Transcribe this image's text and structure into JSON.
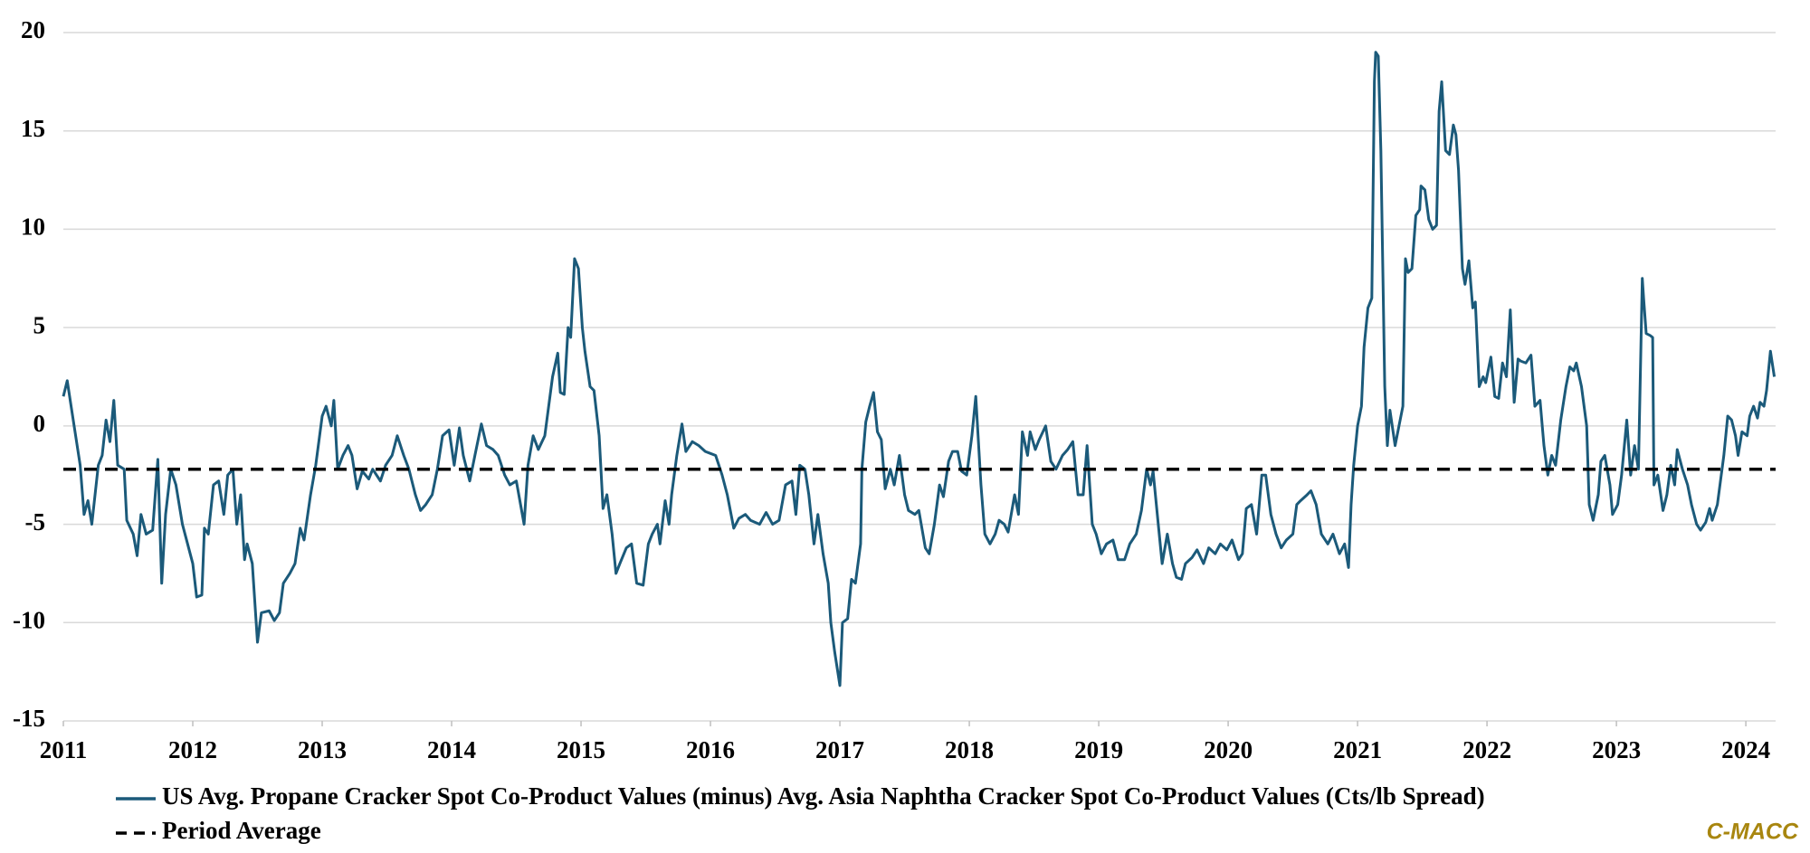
{
  "chart_data": {
    "type": "line",
    "xlim": [
      2011,
      2024.23
    ],
    "xticks": [
      2011,
      2012,
      2013,
      2014,
      2015,
      2016,
      2017,
      2018,
      2019,
      2020,
      2021,
      2022,
      2023,
      2024
    ],
    "ylim": [
      -15,
      20
    ],
    "yticks": [
      -15,
      -10,
      -5,
      0,
      5,
      10,
      15,
      20
    ],
    "grid": true,
    "watermark": "C-MACC",
    "series": [
      {
        "name": "US Avg. Propane Cracker Spot Co-Product Values (minus) Avg. Asia Naphtha Cracker Spot Co-Product Values (Cts/lb Spread)",
        "color": "#1b5a7a",
        "dashed": false,
        "x": [
          2011.0,
          2011.03,
          2011.06,
          2011.13,
          2011.16,
          2011.19,
          2011.22,
          2011.27,
          2011.3,
          2011.33,
          2011.36,
          2011.39,
          2011.42,
          2011.47,
          2011.49,
          2011.54,
          2011.57,
          2011.6,
          2011.64,
          2011.69,
          2011.73,
          2011.76,
          2011.79,
          2011.83,
          2011.87,
          2011.92,
          2011.96,
          2012.0,
          2012.03,
          2012.07,
          2012.09,
          2012.12,
          2012.16,
          2012.2,
          2012.24,
          2012.27,
          2012.31,
          2012.34,
          2012.37,
          2012.4,
          2012.42,
          2012.46,
          2012.5,
          2012.53,
          2012.59,
          2012.63,
          2012.67,
          2012.7,
          2012.75,
          2012.79,
          2012.83,
          2012.86,
          2012.91,
          2012.95,
          2013.0,
          2013.03,
          2013.07,
          2013.09,
          2013.12,
          2013.16,
          2013.2,
          2013.23,
          2013.27,
          2013.31,
          2013.36,
          2013.39,
          2013.45,
          2013.49,
          2013.54,
          2013.58,
          2013.63,
          2013.67,
          2013.72,
          2013.76,
          2013.8,
          2013.85,
          2013.89,
          2013.93,
          2013.98,
          2014.02,
          2014.06,
          2014.09,
          2014.14,
          2014.18,
          2014.23,
          2014.27,
          2014.32,
          2014.36,
          2014.41,
          2014.45,
          2014.5,
          2014.56,
          2014.59,
          2014.63,
          2014.67,
          2014.72,
          2014.75,
          2014.78,
          2014.82,
          2014.84,
          2014.87,
          2014.9,
          2014.92,
          2014.95,
          2014.98,
          2015.01,
          2015.03,
          2015.07,
          2015.1,
          2015.14,
          2015.17,
          2015.2,
          2015.24,
          2015.27,
          2015.3,
          2015.35,
          2015.39,
          2015.43,
          2015.48,
          2015.52,
          2015.55,
          2015.59,
          2015.61,
          2015.65,
          2015.68,
          2015.7,
          2015.74,
          2015.78,
          2015.81,
          2015.86,
          2015.91,
          2015.96,
          2016.0,
          2016.04,
          2016.09,
          2016.13,
          2016.18,
          2016.22,
          2016.27,
          2016.31,
          2016.38,
          2016.43,
          2016.48,
          2016.53,
          2016.58,
          2016.63,
          2016.66,
          2016.69,
          2016.73,
          2016.76,
          2016.8,
          2016.83,
          2016.87,
          2016.91,
          2016.93,
          2016.96,
          2017.0,
          2017.02,
          2017.06,
          2017.09,
          2017.12,
          2017.16,
          2017.17,
          2017.2,
          2017.23,
          2017.26,
          2017.29,
          2017.32,
          2017.35,
          2017.39,
          2017.42,
          2017.46,
          2017.5,
          2017.53,
          2017.58,
          2017.61,
          2017.66,
          2017.69,
          2017.73,
          2017.77,
          2017.8,
          2017.84,
          2017.87,
          2017.91,
          2017.94,
          2017.98,
          2018.02,
          2018.05,
          2018.09,
          2018.12,
          2018.16,
          2018.2,
          2018.23,
          2018.27,
          2018.3,
          2018.35,
          2018.38,
          2018.41,
          2018.45,
          2018.47,
          2018.51,
          2018.54,
          2018.59,
          2018.63,
          2018.67,
          2018.72,
          2018.76,
          2018.8,
          2018.84,
          2018.88,
          2018.91,
          2018.95,
          2018.98,
          2019.02,
          2019.06,
          2019.11,
          2019.15,
          2019.2,
          2019.24,
          2019.29,
          2019.33,
          2019.37,
          2019.4,
          2019.42,
          2019.46,
          2019.49,
          2019.53,
          2019.57,
          2019.6,
          2019.64,
          2019.67,
          2019.72,
          2019.76,
          2019.81,
          2019.85,
          2019.9,
          2019.94,
          2019.99,
          2020.03,
          2020.08,
          2020.11,
          2020.14,
          2020.18,
          2020.22,
          2020.26,
          2020.29,
          2020.33,
          2020.37,
          2020.41,
          2020.45,
          2020.5,
          2020.53,
          2020.56,
          2020.61,
          2020.64,
          2020.68,
          2020.72,
          2020.77,
          2020.81,
          2020.86,
          2020.9,
          2020.93,
          2020.95,
          2020.97,
          2021.0,
          2021.03,
          2021.05,
          2021.08,
          2021.11,
          2021.13,
          2021.14,
          2021.16,
          2021.18,
          2021.21,
          2021.23,
          2021.25,
          2021.29,
          2021.32,
          2021.35,
          2021.37,
          2021.39,
          2021.42,
          2021.45,
          2021.48,
          2021.49,
          2021.52,
          2021.55,
          2021.58,
          2021.61,
          2021.63,
          2021.65,
          2021.68,
          2021.71,
          2021.74,
          2021.76,
          2021.78,
          2021.81,
          2021.83,
          2021.86,
          2021.89,
          2021.91,
          2021.94,
          2021.97,
          2021.99,
          2022.03,
          2022.06,
          2022.09,
          2022.12,
          2022.15,
          2022.18,
          2022.21,
          2022.24,
          2022.26,
          2022.3,
          2022.34,
          2022.37,
          2022.41,
          2022.44,
          2022.47,
          2022.5,
          2022.53,
          2022.57,
          2022.61,
          2022.64,
          2022.67,
          2022.69,
          2022.73,
          2022.77,
          2022.79,
          2022.82,
          2022.86,
          2022.88,
          2022.91,
          2022.95,
          2022.97,
          2023.01,
          2023.04,
          2023.08,
          2023.11,
          2023.14,
          2023.17,
          2023.2,
          2023.21,
          2023.23,
          2023.26,
          2023.28,
          2023.29,
          2023.32,
          2023.36,
          2023.39,
          2023.42,
          2023.45,
          2023.47,
          2023.51,
          2023.55,
          2023.58,
          2023.62,
          2023.65,
          2023.69,
          2023.72,
          2023.74,
          2023.78,
          2023.81,
          2023.83,
          2023.86,
          2023.89,
          2023.92,
          2023.94,
          2023.97,
          2024.01,
          2024.03,
          2024.06,
          2024.09,
          2024.11,
          2024.14,
          2024.16,
          2024.19,
          2024.22
        ],
        "values": [
          1.5,
          2.3,
          1.0,
          -2,
          -4.5,
          -3.8,
          -5,
          -2,
          -1.5,
          0.3,
          -0.8,
          1.3,
          -2,
          -2.2,
          -4.8,
          -5.5,
          -6.6,
          -4.5,
          -5.5,
          -5.3,
          -1.7,
          -8,
          -4.5,
          -2.2,
          -3,
          -5,
          -6,
          -7,
          -8.7,
          -8.6,
          -5.2,
          -5.5,
          -3,
          -2.8,
          -4.5,
          -2.5,
          -2.2,
          -5.0,
          -3.5,
          -6.8,
          -6,
          -7,
          -11,
          -9.5,
          -9.4,
          -9.9,
          -9.5,
          -8,
          -7.5,
          -7,
          -5.2,
          -5.8,
          -3.5,
          -2,
          0.5,
          1,
          0,
          1.3,
          -2.2,
          -1.5,
          -1,
          -1.5,
          -3.2,
          -2.3,
          -2.7,
          -2.2,
          -2.8,
          -2.0,
          -1.5,
          -0.5,
          -1.5,
          -2.2,
          -3.5,
          -4.3,
          -4,
          -3.5,
          -2.2,
          -0.5,
          -0.2,
          -2,
          -0.1,
          -1.5,
          -2.8,
          -1.5,
          0.1,
          -1,
          -1.2,
          -1.5,
          -2.5,
          -3,
          -2.8,
          -5,
          -2,
          -0.5,
          -1.2,
          -0.5,
          1,
          2.5,
          3.7,
          1.7,
          1.6,
          5,
          4.5,
          8.5,
          8,
          5,
          3.8,
          2,
          1.8,
          -0.5,
          -4.2,
          -3.5,
          -5.5,
          -7.5,
          -7,
          -6.2,
          -6,
          -8,
          -8.1,
          -6,
          -5.5,
          -5,
          -6,
          -3.8,
          -5,
          -3.5,
          -1.5,
          0.1,
          -1.3,
          -0.8,
          -1,
          -1.3,
          -1.4,
          -1.5,
          -2.5,
          -3.5,
          -5.2,
          -4.7,
          -4.5,
          -4.8,
          -5,
          -4.4,
          -5,
          -4.8,
          -3,
          -2.8,
          -4.5,
          -2,
          -2.2,
          -3.5,
          -6,
          -4.5,
          -6.5,
          -8,
          -10,
          -11.5,
          -13.2,
          -10,
          -9.8,
          -7.8,
          -8,
          -6,
          -2.2,
          0.2,
          1,
          1.7,
          -0.3,
          -0.7,
          -3.2,
          -2.2,
          -3,
          -1.5,
          -3.5,
          -4.3,
          -4.5,
          -4.3,
          -6.2,
          -6.5,
          -5,
          -3,
          -3.6,
          -1.8,
          -1.3,
          -1.3,
          -2.3,
          -2.5,
          -0.5,
          1.5,
          -3,
          -5.5,
          -6,
          -5.5,
          -4.8,
          -5,
          -5.4,
          -3.5,
          -4.5,
          -0.3,
          -1.5,
          -0.3,
          -1.2,
          -0.7,
          0,
          -1.8,
          -2.2,
          -1.5,
          -1.2,
          -0.8,
          -3.5,
          -3.5,
          -1,
          -5,
          -5.5,
          -6.5,
          -6,
          -5.8,
          -6.8,
          -6.8,
          -6,
          -5.5,
          -4.3,
          -2.2,
          -3,
          -2.3,
          -5,
          -7,
          -5.5,
          -7,
          -7.7,
          -7.8,
          -7,
          -6.7,
          -6.3,
          -7,
          -6.2,
          -6.5,
          -6,
          -6.3,
          -5.8,
          -6.8,
          -6.5,
          -4.2,
          -4,
          -5.5,
          -2.5,
          -2.5,
          -4.5,
          -5.5,
          -6.2,
          -5.8,
          -5.5,
          -4,
          -3.8,
          -3.5,
          -3.3,
          -4,
          -5.5,
          -6,
          -5.5,
          -6.5,
          -6,
          -7.2,
          -4,
          -2,
          0,
          1,
          4,
          6,
          6.5,
          17.5,
          19,
          18.8,
          14,
          2,
          -1,
          0.8,
          -1,
          0,
          1,
          8.5,
          7.8,
          8,
          10.7,
          11,
          12.2,
          12,
          10.5,
          10,
          10.2,
          16,
          17.5,
          14,
          13.8,
          15.3,
          14.8,
          13,
          8,
          7.2,
          8.4,
          6,
          6.3,
          2,
          2.5,
          2.2,
          3.5,
          1.5,
          1.4,
          3.2,
          2.5,
          5.9,
          1.2,
          3.4,
          3.3,
          3.2,
          3.6,
          1,
          1.3,
          -1,
          -2.5,
          -1.5,
          -2,
          0.3,
          2,
          3,
          2.8,
          3.2,
          2,
          0,
          -4,
          -4.8,
          -3.5,
          -1.8,
          -1.5,
          -3,
          -4.5,
          -4,
          -2.5,
          0.3,
          -2.5,
          -1,
          -2.2,
          7.5,
          6.5,
          4.7,
          4.6,
          4.5,
          -3,
          -2.5,
          -4.3,
          -3.5,
          -2,
          -3,
          -1.2,
          -2.2,
          -3,
          -4,
          -5,
          -5.3,
          -4.9,
          -4.2,
          -4.8,
          -4,
          -2.5,
          -1.5,
          0.5,
          0.3,
          -0.5,
          -1.5,
          -0.3,
          -0.5,
          0.5,
          1,
          0.4,
          1.2,
          1,
          1.8,
          3.8,
          2.5
        ]
      },
      {
        "name": "Period Average",
        "color": "#000000",
        "dashed": true,
        "x": [
          2011,
          2024.23
        ],
        "values": [
          -2.2,
          -2.2
        ]
      }
    ]
  }
}
